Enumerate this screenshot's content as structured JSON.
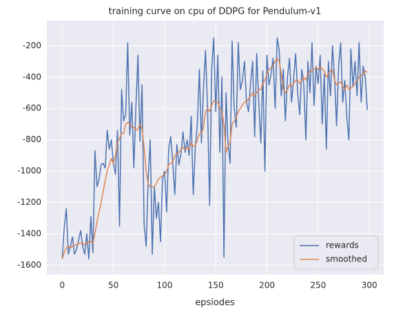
{
  "chart_data": {
    "type": "line",
    "title": "training curve on cpu of DDPG for Pendulum-v1",
    "x_label": "epsiodes",
    "x": [
      0,
      2,
      4,
      6,
      8,
      10,
      12,
      14,
      16,
      18,
      20,
      22,
      24,
      26,
      28,
      30,
      32,
      34,
      36,
      38,
      40,
      42,
      44,
      46,
      48,
      50,
      52,
      54,
      56,
      58,
      60,
      62,
      64,
      66,
      68,
      70,
      72,
      74,
      76,
      78,
      80,
      82,
      84,
      86,
      88,
      90,
      92,
      94,
      96,
      98,
      100,
      102,
      104,
      106,
      108,
      110,
      112,
      114,
      116,
      118,
      120,
      122,
      124,
      126,
      128,
      130,
      132,
      134,
      136,
      138,
      140,
      142,
      144,
      146,
      148,
      150,
      152,
      154,
      156,
      158,
      160,
      162,
      164,
      166,
      168,
      170,
      172,
      174,
      176,
      178,
      180,
      182,
      184,
      186,
      188,
      190,
      192,
      194,
      196,
      198,
      200,
      202,
      204,
      206,
      208,
      210,
      212,
      214,
      216,
      218,
      220,
      222,
      224,
      226,
      228,
      230,
      232,
      234,
      236,
      238,
      240,
      242,
      244,
      246,
      248,
      250,
      252,
      254,
      256,
      258,
      260,
      262,
      264,
      266,
      268,
      270,
      272,
      274,
      276,
      278,
      280,
      282,
      284,
      286,
      288,
      290,
      292,
      294,
      296,
      298
    ],
    "series": [
      {
        "name": "rewards",
        "color": "#4c72b0",
        "values": [
          -1560,
          -1360,
          -1240,
          -1530,
          -1480,
          -1420,
          -1530,
          -1500,
          -1440,
          -1380,
          -1480,
          -1530,
          -1400,
          -1560,
          -1290,
          -1520,
          -870,
          -1100,
          -1050,
          -960,
          -950,
          -980,
          -740,
          -860,
          -800,
          -950,
          -1020,
          -740,
          -1350,
          -480,
          -680,
          -640,
          -180,
          -770,
          -560,
          -980,
          -590,
          -260,
          -810,
          -450,
          -1340,
          -1480,
          -1050,
          -800,
          -1530,
          -1100,
          -1300,
          -1200,
          -1450,
          -1050,
          -1000,
          -1260,
          -860,
          -780,
          -950,
          -1150,
          -830,
          -960,
          -890,
          -750,
          -880,
          -800,
          -900,
          -650,
          -1150,
          -850,
          -700,
          -350,
          -820,
          -470,
          -230,
          -600,
          -1220,
          -350,
          -150,
          -620,
          -260,
          -880,
          -400,
          -1550,
          -500,
          -830,
          -950,
          -170,
          -600,
          -720,
          -180,
          -480,
          -420,
          -300,
          -560,
          -620,
          -440,
          -300,
          -780,
          -250,
          -560,
          -820,
          -360,
          -1000,
          -260,
          -450,
          -380,
          -280,
          -600,
          -150,
          -230,
          -520,
          -350,
          -680,
          -400,
          -280,
          -560,
          -420,
          -250,
          -500,
          -640,
          -350,
          -450,
          -800,
          -300,
          -500,
          -180,
          -580,
          -330,
          -440,
          -260,
          -700,
          -380,
          -860,
          -300,
          -520,
          -200,
          -400,
          -710,
          -330,
          -180,
          -560,
          -420,
          -650,
          -800,
          -220,
          -460,
          -300,
          -520,
          -180,
          -560,
          -330,
          -400,
          -610
        ]
      },
      {
        "name": "smoothed",
        "color": "#dd8452",
        "values": [
          -1560,
          -1520,
          -1490,
          -1480,
          -1490,
          -1480,
          -1470,
          -1470,
          -1460,
          -1460,
          -1460,
          -1470,
          -1460,
          -1450,
          -1450,
          -1460,
          -1400,
          -1320,
          -1260,
          -1200,
          -1130,
          -1060,
          -1000,
          -960,
          -920,
          -950,
          -900,
          -820,
          -790,
          -760,
          -760,
          -700,
          -690,
          -700,
          -720,
          -720,
          -740,
          -730,
          -700,
          -720,
          -850,
          -1000,
          -1080,
          -1100,
          -1100,
          -1100,
          -1080,
          -1050,
          -1040,
          -1030,
          -1020,
          -1000,
          -960,
          -950,
          -940,
          -900,
          -890,
          -880,
          -860,
          -850,
          -860,
          -850,
          -860,
          -820,
          -840,
          -840,
          -800,
          -760,
          -760,
          -720,
          -620,
          -600,
          -620,
          -580,
          -550,
          -560,
          -560,
          -600,
          -620,
          -700,
          -880,
          -840,
          -820,
          -700,
          -680,
          -660,
          -620,
          -600,
          -580,
          -560,
          -560,
          -540,
          -520,
          -500,
          -520,
          -500,
          -480,
          -480,
          -440,
          -420,
          -380,
          -350,
          -340,
          -330,
          -300,
          -280,
          -300,
          -380,
          -480,
          -500,
          -480,
          -450,
          -460,
          -440,
          -420,
          -420,
          -440,
          -420,
          -400,
          -420,
          -380,
          -360,
          -360,
          -350,
          -340,
          -350,
          -330,
          -350,
          -360,
          -400,
          -380,
          -360,
          -350,
          -420,
          -450,
          -440,
          -430,
          -460,
          -480,
          -450,
          -480,
          -470,
          -460,
          -440,
          -430,
          -400,
          -390,
          -380,
          -360,
          -370
        ]
      }
    ],
    "xlim": [
      -15,
      314
    ],
    "xticks": [
      0,
      50,
      100,
      150,
      200,
      250,
      300
    ],
    "ylim": [
      -1660,
      -40
    ],
    "yticks": [
      -1600,
      -1400,
      -1200,
      -1000,
      -800,
      -600,
      -400,
      -200
    ],
    "grid": true,
    "legend": "lower right"
  }
}
